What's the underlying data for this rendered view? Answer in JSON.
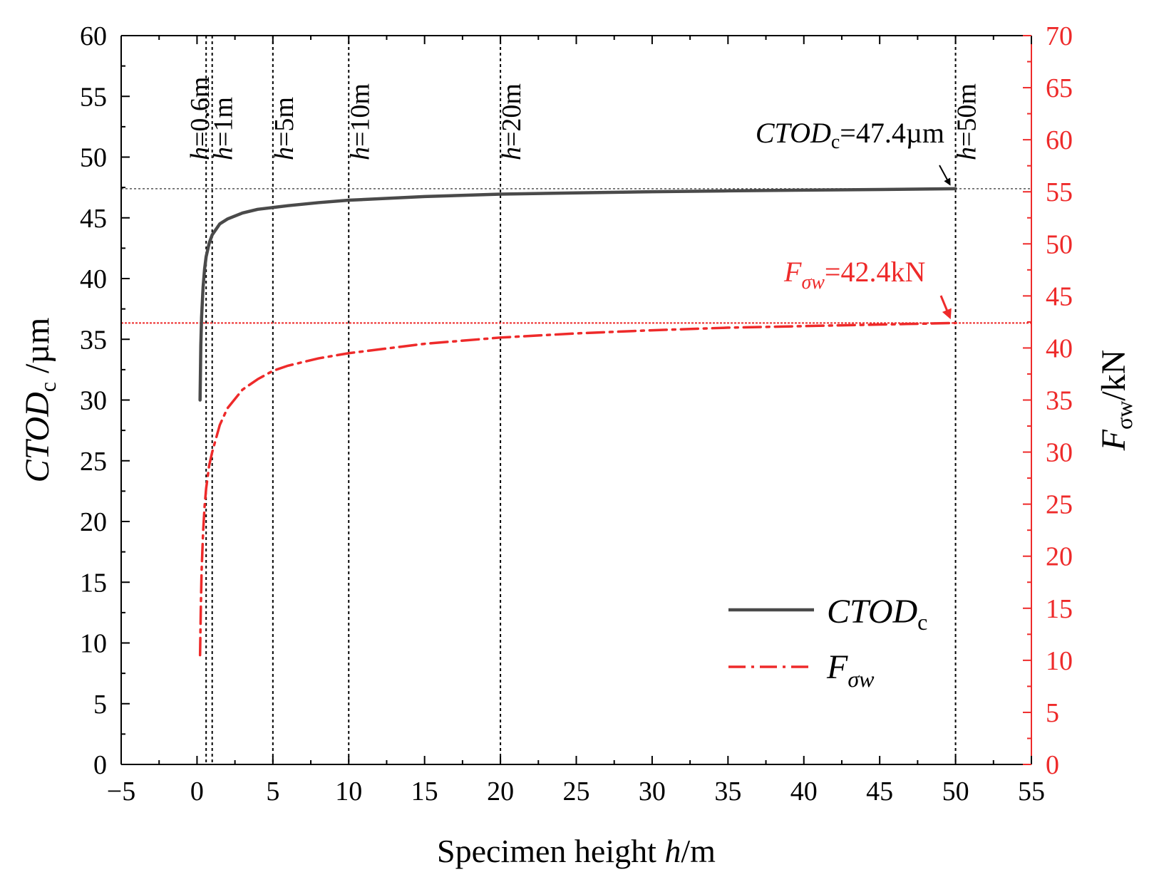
{
  "chart_data": {
    "type": "line",
    "xlabel": "Specimen height",
    "xlabel_var": "h",
    "xlabel_unit": "/m",
    "xlim": [
      -5,
      55
    ],
    "xticks": [
      -5,
      0,
      5,
      10,
      15,
      20,
      25,
      30,
      35,
      40,
      45,
      50,
      55
    ],
    "xtick_labels": [
      "−5",
      "0",
      "5",
      "10",
      "15",
      "20",
      "25",
      "30",
      "35",
      "40",
      "45",
      "50",
      "55"
    ],
    "ylabel_left": {
      "main": "CTOD",
      "sub": "c",
      "unit": " /µm"
    },
    "ylim_left": [
      0,
      60
    ],
    "yticks_left": [
      0,
      5,
      10,
      15,
      20,
      25,
      30,
      35,
      40,
      45,
      50,
      55,
      60
    ],
    "ylabel_right": {
      "main": "F",
      "sub": "σw",
      "unit": "/kN"
    },
    "ylim_right": [
      0,
      70
    ],
    "yticks_right": [
      0,
      5,
      10,
      15,
      20,
      25,
      30,
      35,
      40,
      45,
      50,
      55,
      60,
      65,
      70
    ],
    "colors": {
      "ctod": "#4a4a4a",
      "force": "#ee2a2a",
      "axis": "#000000",
      "right_axis": "#ee2a2a"
    },
    "series": [
      {
        "name": "CTODc",
        "label_main": "CTOD",
        "label_sub": "c",
        "axis": "left",
        "style": "solid",
        "x": [
          0.2,
          0.25,
          0.3,
          0.4,
          0.5,
          0.6,
          0.8,
          1.0,
          1.5,
          2,
          3,
          4,
          5,
          6,
          8,
          10,
          15,
          20,
          25,
          30,
          35,
          40,
          45,
          50
        ],
        "y": [
          30.0,
          34.5,
          36.8,
          39.3,
          40.8,
          41.8,
          42.9,
          43.6,
          44.5,
          44.9,
          45.4,
          45.7,
          45.85,
          46.0,
          46.25,
          46.45,
          46.75,
          46.95,
          47.05,
          47.15,
          47.22,
          47.28,
          47.33,
          47.4
        ]
      },
      {
        "name": "Fσw",
        "label_main": "F",
        "label_sub": "σw",
        "axis": "right",
        "style": "dashdot",
        "x": [
          0.2,
          0.25,
          0.3,
          0.4,
          0.5,
          0.6,
          0.8,
          1.0,
          1.5,
          2,
          3,
          4,
          5,
          6,
          8,
          10,
          15,
          20,
          25,
          30,
          35,
          40,
          45,
          50
        ],
        "y": [
          10.5,
          15.0,
          18.5,
          22.3,
          24.8,
          26.5,
          28.7,
          30.0,
          32.6,
          34.2,
          36.0,
          37.0,
          37.8,
          38.3,
          39.0,
          39.5,
          40.4,
          41.0,
          41.4,
          41.7,
          41.95,
          42.1,
          42.25,
          42.4
        ]
      }
    ],
    "vlines": [
      {
        "x": 0.6,
        "var": "h",
        "text": "=0.6m"
      },
      {
        "x": 1,
        "var": "h",
        "text": "=1m"
      },
      {
        "x": 5,
        "var": "h",
        "text": "=5m"
      },
      {
        "x": 10,
        "var": "h",
        "text": "=10m"
      },
      {
        "x": 20,
        "var": "h",
        "text": "=20m"
      },
      {
        "x": 50,
        "var": "h",
        "text": "=50m"
      }
    ],
    "hlines": [
      {
        "axis": "left",
        "y": 47.4,
        "color": "#555555"
      },
      {
        "axis": "right",
        "y": 42.4,
        "color": "#ee2a2a"
      }
    ],
    "annotations": [
      {
        "main": "CTOD",
        "sub": "c",
        "text": "=47.4µm",
        "target_x": 50,
        "target_y": 47.4,
        "axis": "left"
      },
      {
        "main": "F",
        "sub": "σw",
        "text": "=42.4kN",
        "target_x": 50,
        "target_y": 42.4,
        "axis": "right"
      }
    ],
    "legend_position": "lower-right"
  }
}
